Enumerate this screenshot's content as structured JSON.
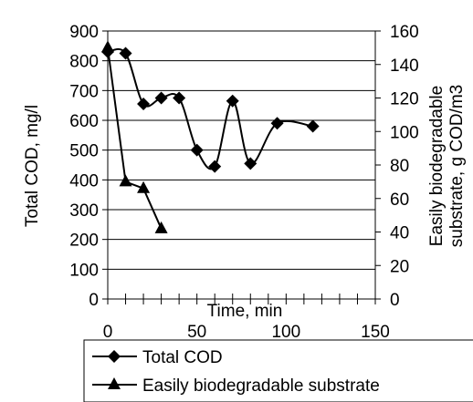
{
  "chart_data": {
    "type": "line",
    "title": "",
    "xlabel": "Time, min",
    "ylabel": "Total COD, mg/l",
    "y2label_line1": "Easily biodegradable",
    "y2label_line2": "substrate, g COD/m3",
    "xlim": [
      0,
      150
    ],
    "ylim": [
      0,
      900
    ],
    "y2lim": [
      0,
      160
    ],
    "x_ticks": [
      "0",
      "50",
      "100",
      "150"
    ],
    "y_ticks": [
      "0",
      "100",
      "200",
      "300",
      "400",
      "500",
      "600",
      "700",
      "800",
      "900"
    ],
    "y2_ticks": [
      "0",
      "20",
      "40",
      "60",
      "80",
      "100",
      "120",
      "140",
      "160"
    ],
    "grid": "horizontal",
    "legend_position": "bottom",
    "series": [
      {
        "name": "Total COD",
        "axis": "left",
        "marker": "diamond",
        "smooth": true,
        "color": "#000000",
        "x": [
          0,
          10,
          20,
          30,
          40,
          50,
          60,
          70,
          80,
          95,
          115
        ],
        "y": [
          830,
          825,
          655,
          675,
          675,
          500,
          445,
          665,
          455,
          590,
          580
        ]
      },
      {
        "name": "Easily biodegradable substrate",
        "axis": "right",
        "marker": "triangle",
        "smooth": false,
        "color": "#000000",
        "x": [
          0,
          10,
          20,
          30
        ],
        "y": [
          150,
          70,
          66,
          42
        ]
      }
    ]
  }
}
